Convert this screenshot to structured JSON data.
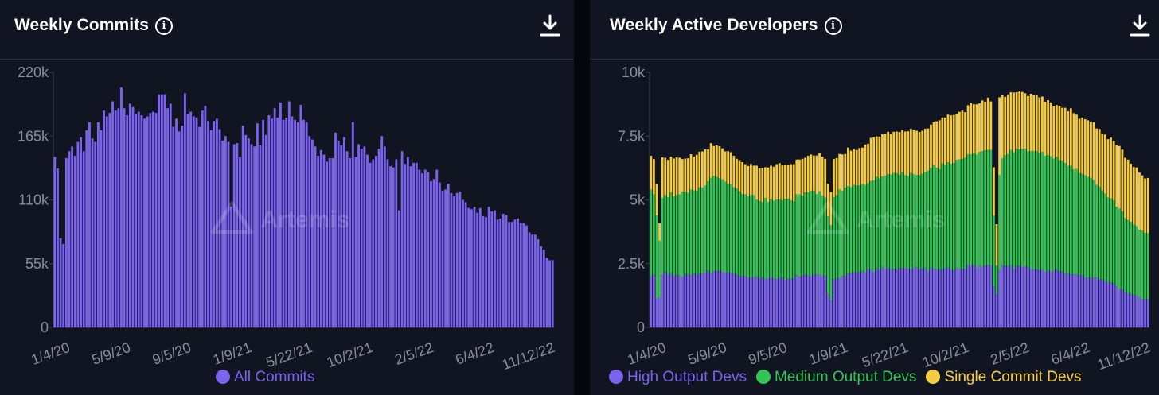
{
  "colors": {
    "background": "#111421",
    "purple": "#7b63ef",
    "green": "#33c553",
    "yellow": "#f5cc40",
    "axis_text": "#8b8f9c"
  },
  "watermark": "Artemis",
  "chart_data": [
    {
      "type": "bar",
      "title": "Weekly Commits",
      "icons": [
        "info-icon",
        "download-icon"
      ],
      "y_ticks": [
        "0",
        "55k",
        "110k",
        "165k",
        "220k"
      ],
      "ylim": [
        0,
        220000
      ],
      "x_ticks": [
        "1/4/20",
        "5/9/20",
        "9/5/20",
        "1/9/21",
        "5/22/21",
        "10/2/21",
        "2/5/22",
        "6/4/22",
        "11/12/22"
      ],
      "legend": [
        {
          "name": "All Commits",
          "color": "#7b63ef"
        }
      ],
      "series": [
        {
          "name": "All Commits",
          "color": "#7b63ef",
          "values": [
            147000,
            137000,
            77000,
            72000,
            146000,
            152000,
            156000,
            148000,
            160000,
            164000,
            152000,
            170000,
            177000,
            163000,
            160000,
            177000,
            170000,
            187000,
            182000,
            185000,
            195000,
            187000,
            189000,
            207000,
            189000,
            183000,
            193000,
            190000,
            184000,
            186000,
            183000,
            180000,
            182000,
            185000,
            186000,
            185000,
            201000,
            201000,
            201000,
            189000,
            193000,
            173000,
            180000,
            169000,
            174000,
            202000,
            184000,
            186000,
            182000,
            181000,
            173000,
            187000,
            191000,
            178000,
            170000,
            178000,
            180000,
            171000,
            161000,
            165000,
            160000,
            104000,
            158000,
            159000,
            147000,
            174000,
            166000,
            163000,
            158000,
            156000,
            176000,
            157000,
            179000,
            166000,
            183000,
            180000,
            189000,
            181000,
            194000,
            179000,
            181000,
            195000,
            182000,
            179000,
            177000,
            192000,
            179000,
            177000,
            165000,
            162000,
            156000,
            148000,
            153000,
            149000,
            143000,
            146000,
            146000,
            168000,
            161000,
            157000,
            164000,
            152000,
            146000,
            177000,
            147000,
            158000,
            154000,
            156000,
            149000,
            142000,
            145000,
            148000,
            154000,
            165000,
            156000,
            145000,
            139000,
            138000,
            145000,
            101000,
            152000,
            141000,
            147000,
            139000,
            142000,
            142000,
            136000,
            133000,
            136000,
            134000,
            126000,
            128000,
            136000,
            125000,
            118000,
            119000,
            124000,
            116000,
            113000,
            116000,
            117000,
            110000,
            108000,
            103000,
            102000,
            104000,
            99000,
            103000,
            96000,
            95000,
            104000,
            100000,
            101000,
            93000,
            94000,
            98000,
            97000,
            91000,
            91000,
            93000,
            94000,
            90000,
            90000,
            88000,
            82000,
            80000,
            80000,
            76000,
            70000,
            67000,
            60000,
            58000,
            58000
          ]
        }
      ]
    },
    {
      "type": "bar",
      "stacked": true,
      "title": "Weekly Active Developers",
      "icons": [
        "info-icon",
        "download-icon"
      ],
      "y_ticks": [
        "0",
        "2.5k",
        "5k",
        "7.5k",
        "10k"
      ],
      "ylim": [
        0,
        10000
      ],
      "x_ticks": [
        "1/4/20",
        "5/9/20",
        "9/5/20",
        "1/9/21",
        "5/22/21",
        "10/2/21",
        "2/5/22",
        "6/4/22",
        "11/12/22"
      ],
      "legend": [
        {
          "name": "High Output Devs",
          "color": "#7b63ef"
        },
        {
          "name": "Medium Output Devs",
          "color": "#33c553"
        },
        {
          "name": "Single Commit Devs",
          "color": "#f5cc40"
        }
      ],
      "series": [
        {
          "name": "High Output Devs",
          "color": "#7b63ef",
          "values": [
            2000,
            2080,
            1150,
            1170,
            2070,
            2170,
            2060,
            2140,
            2000,
            2060,
            2020,
            1980,
            2090,
            2080,
            2050,
            2110,
            2060,
            2110,
            2110,
            2130,
            2240,
            2100,
            2200,
            2210,
            2220,
            2180,
            2150,
            2140,
            2150,
            2110,
            2050,
            2000,
            2020,
            2010,
            1940,
            1950,
            1960,
            1990,
            1910,
            1960,
            1920,
            1910,
            1960,
            1930,
            1890,
            1940,
            1960,
            1870,
            1910,
            1930,
            1890,
            2060,
            1990,
            2020,
            2080,
            2030,
            2010,
            2090,
            2080,
            2060,
            2010,
            2050,
            1300,
            1060,
            1890,
            1910,
            1950,
            2020,
            2010,
            2110,
            2120,
            2160,
            2150,
            2160,
            2220,
            2140,
            2290,
            2280,
            2150,
            2330,
            2220,
            2380,
            2290,
            2330,
            2280,
            2300,
            2260,
            2330,
            2310,
            2320,
            2320,
            2270,
            2320,
            2380,
            2270,
            2300,
            2340,
            2200,
            2350,
            2300,
            2280,
            2260,
            2290,
            2310,
            2380,
            2250,
            2220,
            2330,
            2290,
            2300,
            2290,
            2440,
            2430,
            2460,
            2320,
            2440,
            2380,
            2410,
            2440,
            2420,
            1600,
            1290,
            2250,
            2450,
            2390,
            2390,
            2440,
            2290,
            2390,
            2420,
            2360,
            2400,
            2370,
            2290,
            2290,
            2270,
            2240,
            2290,
            2170,
            2260,
            2180,
            2210,
            2290,
            2190,
            2190,
            2090,
            2120,
            2080,
            2080,
            2080,
            2030,
            2050,
            1940,
            1950,
            1950,
            1950,
            1950,
            1890,
            1880,
            1810,
            1760,
            1770,
            1720,
            1610,
            1500,
            1490,
            1370,
            1320,
            1320,
            1270,
            1250,
            1170,
            1100,
            1110,
            1110
          ]
        },
        {
          "name": "Medium Output Devs",
          "color": "#33c553",
          "values": [
            3400,
            3140,
            3240,
            2230,
            3010,
            3020,
            3050,
            3160,
            3140,
            3120,
            3200,
            3350,
            3230,
            3200,
            3350,
            3260,
            3290,
            3380,
            3370,
            3430,
            3490,
            3770,
            3740,
            3680,
            3630,
            3620,
            3560,
            3490,
            3460,
            3380,
            3390,
            3330,
            3210,
            3210,
            3200,
            3240,
            3230,
            3020,
            3040,
            2950,
            3160,
            3000,
            3070,
            3040,
            3120,
            3080,
            3020,
            3170,
            3140,
            3050,
            3050,
            3160,
            3230,
            3140,
            3220,
            3260,
            3350,
            3270,
            3150,
            3280,
            3150,
            3040,
            3060,
            2950,
            3210,
            3270,
            3460,
            3340,
            3470,
            3430,
            3380,
            3430,
            3410,
            3410,
            3400,
            3450,
            3370,
            3460,
            3610,
            3570,
            3620,
            3540,
            3650,
            3680,
            3710,
            3760,
            3780,
            3640,
            3790,
            3650,
            3610,
            3780,
            3680,
            3600,
            3690,
            3720,
            3760,
            3940,
            3900,
            4060,
            3980,
            3940,
            4140,
            4050,
            4100,
            4160,
            4220,
            4240,
            4300,
            4310,
            4350,
            4350,
            4360,
            4380,
            4450,
            4440,
            4530,
            4530,
            4520,
            4540,
            2780,
            1130,
            3720,
            4180,
            4360,
            4410,
            4520,
            4570,
            4620,
            4550,
            4640,
            4610,
            4530,
            4620,
            4620,
            4630,
            4610,
            4590,
            4560,
            4500,
            4530,
            4410,
            4400,
            4370,
            4350,
            4360,
            4210,
            4260,
            4120,
            4130,
            4030,
            3970,
            4020,
            3950,
            3910,
            3830,
            3640,
            3630,
            3490,
            3440,
            3330,
            3290,
            3260,
            3120,
            3160,
            3060,
            2910,
            2890,
            2820,
            2760,
            2720,
            2650,
            2700,
            2590,
            2580,
            2580,
            2460
          ]
        },
        {
          "name": "Single Commit Devs",
          "color": "#f5cc40",
          "values": [
            1330,
            1380,
            1230,
            690,
            1590,
            1460,
            1460,
            1400,
            1480,
            1490,
            1430,
            1270,
            1300,
            1350,
            1390,
            1330,
            1420,
            1400,
            1420,
            1420,
            1250,
            1350,
            1170,
            1250,
            1250,
            1220,
            1190,
            1280,
            1260,
            1240,
            1170,
            1230,
            1250,
            1180,
            1190,
            1220,
            1150,
            1330,
            1290,
            1340,
            1200,
            1360,
            1310,
            1330,
            1390,
            1420,
            1370,
            1330,
            1320,
            1420,
            1460,
            1360,
            1360,
            1450,
            1350,
            1440,
            1420,
            1380,
            1510,
            1500,
            1530,
            1520,
            1270,
            1300,
            1500,
            1460,
            1390,
            1420,
            1320,
            1510,
            1430,
            1400,
            1390,
            1460,
            1430,
            1580,
            1540,
            1690,
            1700,
            1590,
            1640,
            1650,
            1660,
            1660,
            1600,
            1610,
            1640,
            1690,
            1640,
            1710,
            1760,
            1740,
            1750,
            1730,
            1700,
            1690,
            1690,
            1660,
            1700,
            1690,
            1820,
            1920,
            1800,
            1870,
            1860,
            1900,
            1890,
            1810,
            1860,
            1890,
            1800,
            1920,
            2010,
            1910,
            1980,
            1900,
            1990,
            1910,
            2050,
            1900,
            1900,
            1630,
            3050,
            2470,
            2290,
            2330,
            2260,
            2350,
            2210,
            2280,
            2230,
            2170,
            2170,
            2250,
            2190,
            2200,
            2170,
            2170,
            2120,
            2150,
            2110,
            2050,
            2030,
            2120,
            2070,
            2160,
            2140,
            2250,
            2200,
            2130,
            2120,
            2210,
            2200,
            2220,
            2190,
            2260,
            2210,
            2260,
            2230,
            2310,
            2290,
            2380,
            2320,
            2410,
            2450,
            2420,
            2370,
            2370,
            2280,
            2260,
            2300,
            2250,
            2160,
            2140,
            2170,
            2150,
            2130,
            2070,
            2000,
            2050,
            2020,
            2060,
            2000,
            1990
          ]
        }
      ]
    }
  ]
}
